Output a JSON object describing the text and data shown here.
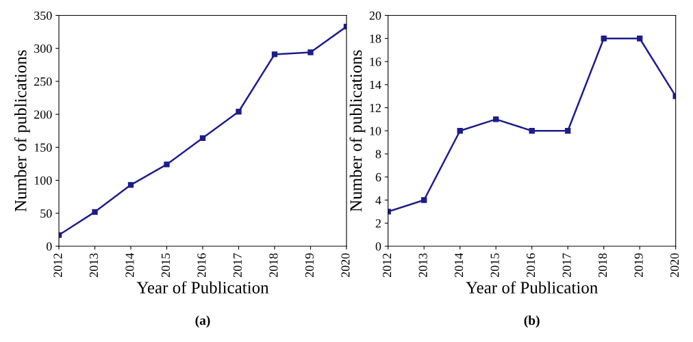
{
  "chart_data": [
    {
      "type": "line",
      "xlabel": "Year of Publication",
      "ylabel": "Number of publications",
      "categories": [
        "2012",
        "2013",
        "2014",
        "2015",
        "2016",
        "2017",
        "2018",
        "2019",
        "2020"
      ],
      "series": [
        {
          "color": "#1c1c8c",
          "values": [
            17,
            52,
            93,
            124,
            164,
            204,
            291,
            294,
            333
          ]
        }
      ],
      "ylim": [
        0,
        350
      ],
      "yticks": [
        0,
        50,
        100,
        150,
        200,
        250,
        300,
        350
      ],
      "marker": "square",
      "line_style": "solid",
      "grid": false,
      "legend": false,
      "annotations": [
        "(a)"
      ]
    },
    {
      "type": "line",
      "xlabel": "Year of Publication",
      "ylabel": "Number of publications",
      "categories": [
        "2012",
        "2013",
        "2014",
        "2015",
        "2016",
        "2017",
        "2018",
        "2019",
        "2020"
      ],
      "series": [
        {
          "color": "#1c1c8c",
          "values": [
            3,
            4,
            10,
            11,
            10,
            10,
            18,
            18,
            13
          ]
        }
      ],
      "ylim": [
        0,
        20
      ],
      "yticks": [
        0,
        2,
        4,
        6,
        8,
        10,
        12,
        14,
        16,
        18,
        20
      ],
      "marker": "square",
      "line_style": "solid",
      "grid": false,
      "legend": false,
      "annotations": [
        "(b)"
      ]
    }
  ]
}
